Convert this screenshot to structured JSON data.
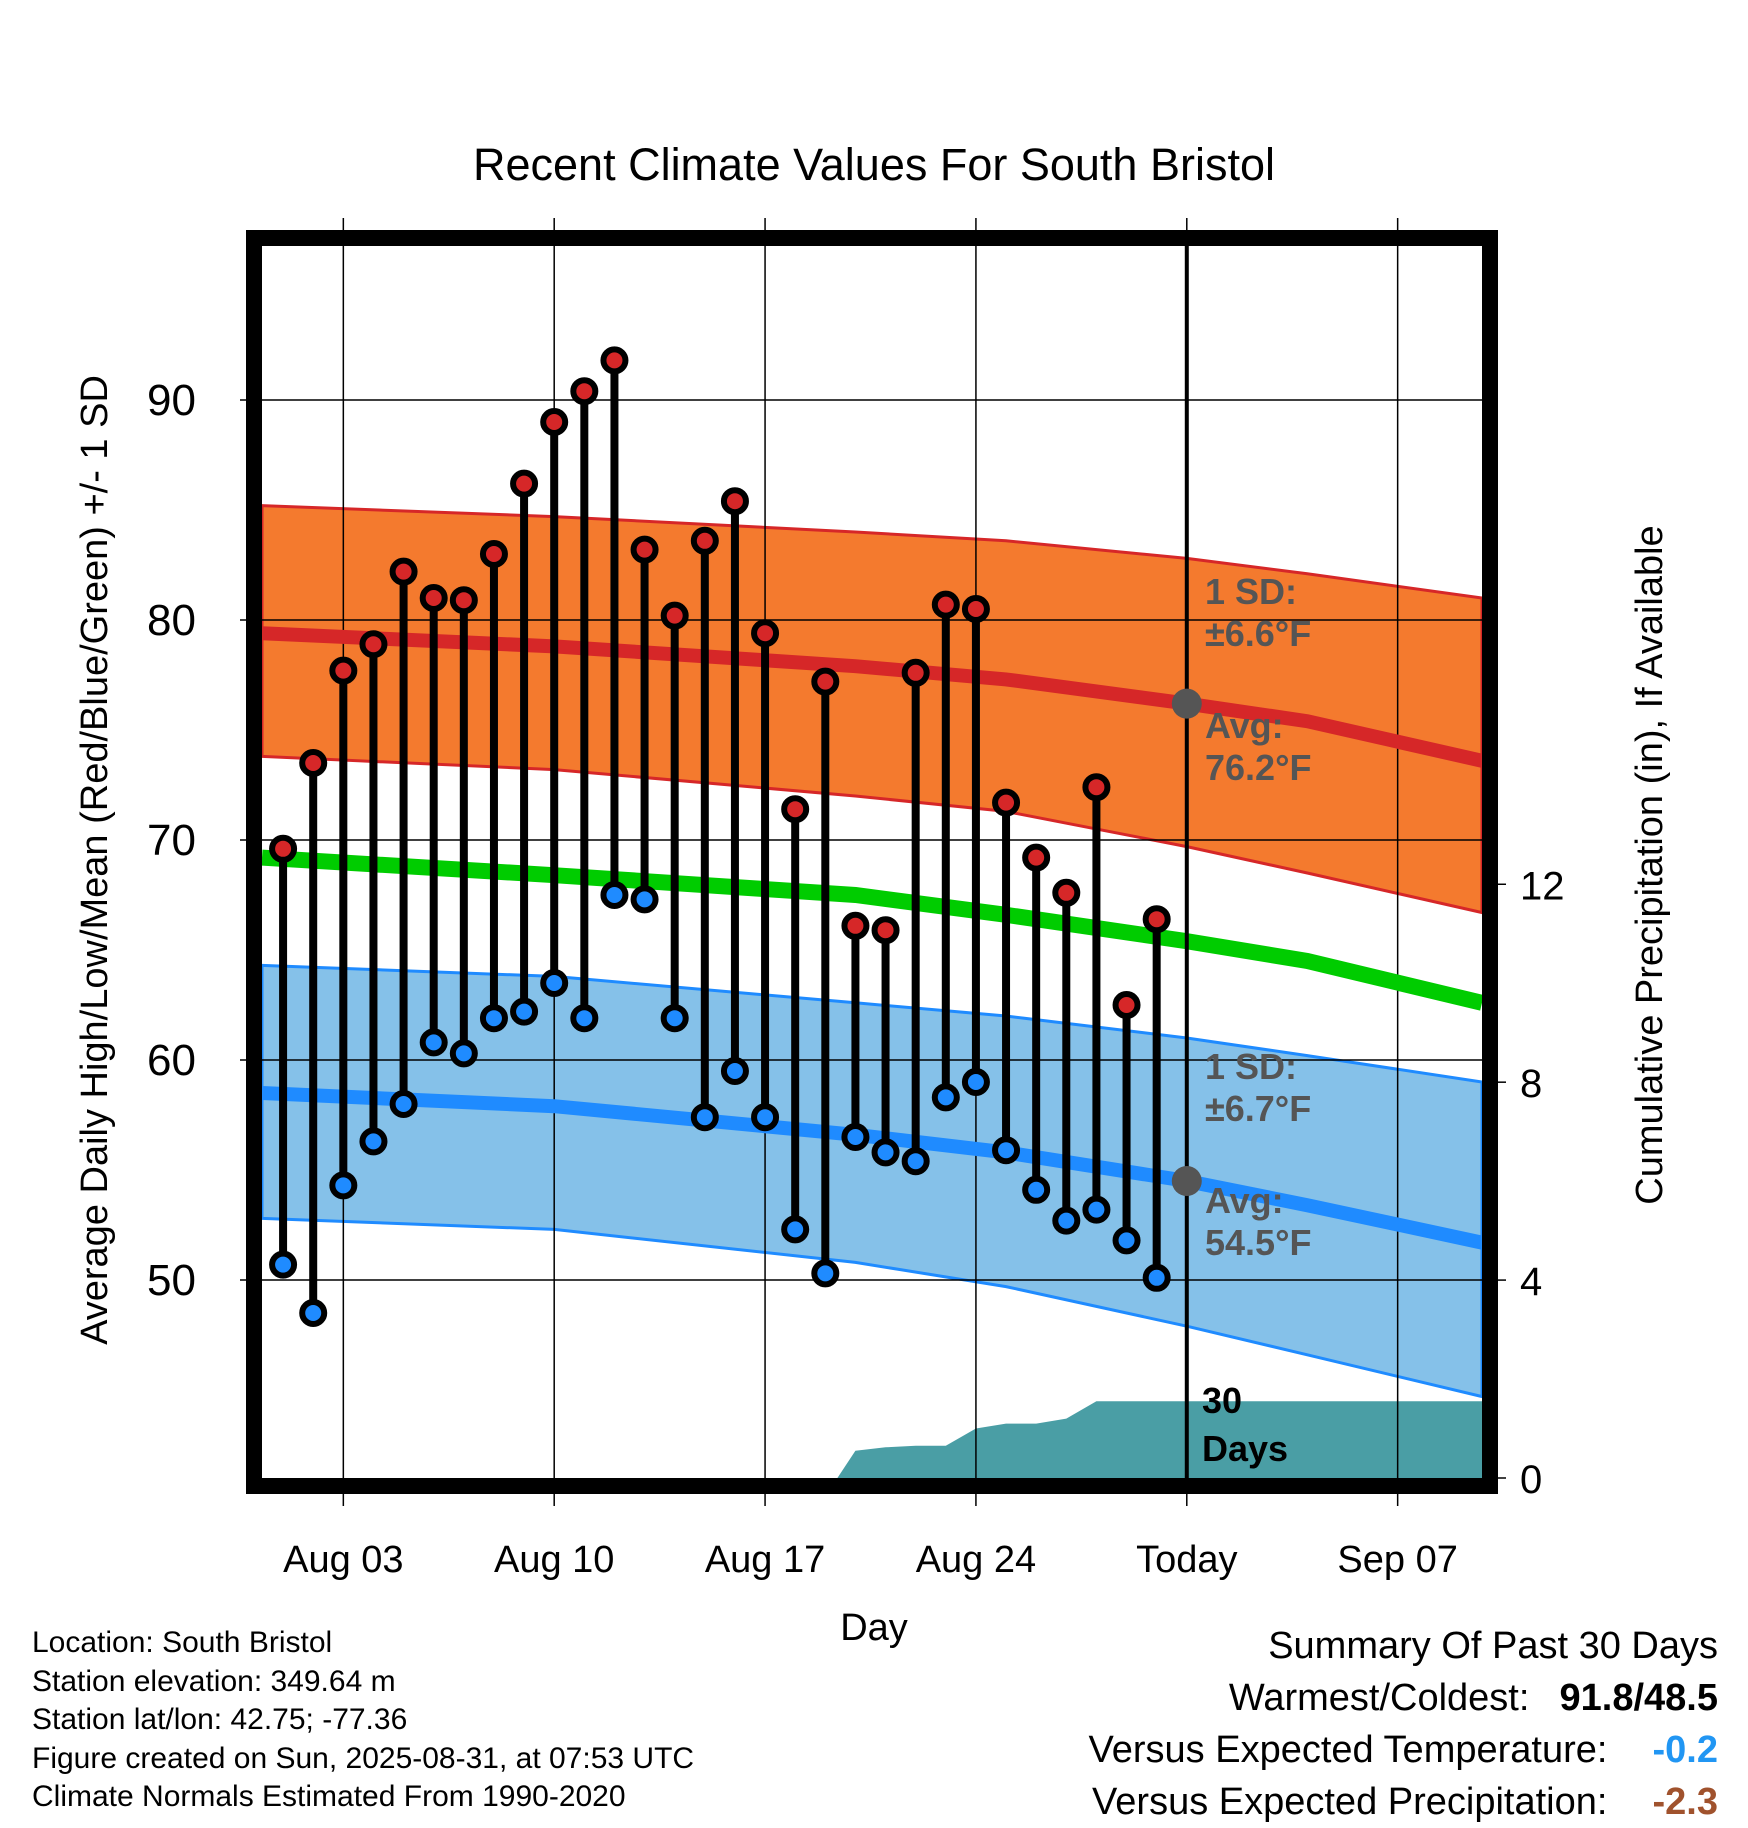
{
  "chart_data": {
    "type": "line",
    "title": "Recent Climate Values For South Bristol",
    "xlabel": "Day",
    "ylabel_left": "Average Daily High/Low/Mean (Red/Blue/Green) +/- 1 SD",
    "ylabel_right": "Cumulative Precipitation (in), If Available",
    "x_tick_labels": [
      "Aug 03",
      "Aug 10",
      "Aug 17",
      "Aug 24",
      "Today",
      "Sep 07"
    ],
    "y_left_ticks": [
      50,
      60,
      70,
      80,
      90
    ],
    "y_left_range": [
      41,
      97
    ],
    "y_right_ticks": [
      0,
      4,
      8,
      12
    ],
    "y_right_range": [
      0,
      24.9
    ],
    "x_range": [
      0.3,
      40.8
    ],
    "today_index": 31,
    "highs": [
      69.6,
      73.5,
      77.7,
      78.9,
      82.2,
      81.0,
      80.9,
      83.0,
      86.2,
      89.0,
      90.4,
      91.8,
      83.2,
      80.2,
      83.6,
      85.4,
      79.4,
      71.4,
      77.2,
      66.1,
      65.9,
      77.6,
      80.7,
      80.5,
      71.7,
      69.2,
      67.6,
      72.4,
      62.5,
      66.4
    ],
    "lows": [
      50.7,
      48.5,
      54.3,
      56.3,
      58.0,
      60.8,
      60.3,
      61.9,
      62.2,
      63.5,
      61.9,
      67.5,
      67.3,
      61.9,
      57.4,
      59.5,
      57.4,
      52.3,
      50.3,
      56.5,
      55.8,
      55.4,
      58.3,
      59.0,
      55.9,
      54.1,
      52.7,
      53.2,
      51.8,
      50.1
    ],
    "normal_high": {
      "x": [
        0.3,
        10,
        20,
        25,
        31,
        35,
        40.8
      ],
      "mean": [
        79.4,
        78.8,
        77.9,
        77.3,
        76.2,
        75.4,
        73.6
      ],
      "upper": [
        85.2,
        84.7,
        84.0,
        83.6,
        82.8,
        82.1,
        81.0
      ],
      "lower": [
        73.8,
        73.2,
        72.0,
        71.3,
        69.7,
        68.5,
        66.7
      ]
    },
    "normal_low": {
      "x": [
        0.3,
        10,
        20,
        25,
        31,
        35,
        40.8
      ],
      "mean": [
        58.5,
        57.9,
        56.6,
        55.8,
        54.5,
        53.4,
        51.7
      ],
      "upper": [
        64.3,
        63.8,
        62.6,
        62.0,
        61.0,
        60.2,
        59.0
      ],
      "lower": [
        52.8,
        52.3,
        50.8,
        49.7,
        47.9,
        46.6,
        44.7
      ]
    },
    "normal_mean": {
      "x": [
        0.3,
        10,
        20,
        25,
        31,
        35,
        40.8
      ],
      "values": [
        69.2,
        68.4,
        67.5,
        66.6,
        65.4,
        64.5,
        62.6
      ]
    },
    "precip_cumulative": {
      "x": [
        19.4,
        20,
        21,
        22,
        23,
        24,
        25,
        26,
        27,
        28,
        29,
        31,
        40.8
      ],
      "values": [
        0,
        0.55,
        0.62,
        0.65,
        0.65,
        1.0,
        1.1,
        1.1,
        1.2,
        1.55,
        1.55,
        1.55,
        1.55
      ]
    },
    "annotations": {
      "high_sd_label": "1 SD:",
      "high_sd_value": "±6.6°F",
      "high_avg_label": "Avg:",
      "high_avg_value": "76.2°F",
      "low_sd_label": "1 SD:",
      "low_sd_value": "±6.7°F",
      "low_avg_label": "Avg:",
      "low_avg_value": "54.5°F",
      "days_count": "30",
      "days_label": "Days"
    }
  },
  "colors": {
    "high_band": "#f47a2e",
    "high_line": "#d62728",
    "low_band": "#85c1e9",
    "low_line": "#1f8bff",
    "mean_line": "#00cc00",
    "precip": "#4a9ea5",
    "high_marker": "#d62728",
    "low_marker": "#1f8bff",
    "annotation": "#555555",
    "versus_temp": "#2196f3",
    "versus_precip": "#a0522d"
  },
  "footer_left": {
    "location": "Location: South Bristol",
    "elevation": "Station elevation: 349.64 m",
    "latlon": "Station lat/lon: 42.75; -77.36",
    "created": "Figure created on Sun, 2025-08-31, at 07:53 UTC",
    "normals": "Climate Normals Estimated From 1990-2020"
  },
  "footer_right": {
    "title": "Summary Of Past 30 Days",
    "warm_cold_label": "Warmest/Coldest:",
    "warm_cold_value": "91.8/48.5",
    "versus_temp_label": "Versus Expected Temperature:",
    "versus_temp_value": "-0.2",
    "versus_precip_label": "Versus Expected Precipitation:",
    "versus_precip_value": "-2.3"
  }
}
